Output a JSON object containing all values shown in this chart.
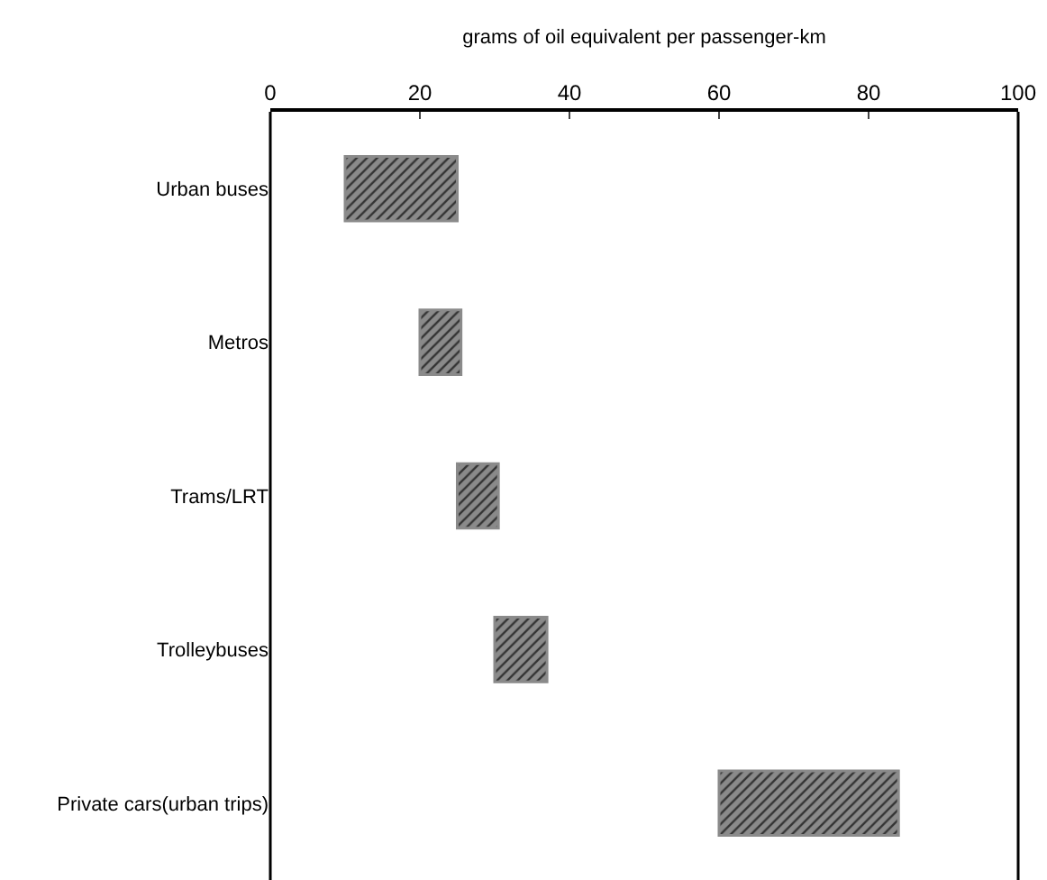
{
  "chart_data": {
    "type": "bar",
    "orientation": "horizontal",
    "xlabel": "grams of oil equivalent per passenger-km",
    "categories": [
      "Urban buses",
      "Metros",
      "Trams/LRT",
      "Trolleybuses",
      "Private cars(urban trips)"
    ],
    "base": [
      10,
      20,
      25,
      30,
      60
    ],
    "values": [
      15,
      5.5,
      5.5,
      7,
      24
    ],
    "color": "#8a8a8a",
    "xlim": [
      0,
      100
    ],
    "xticks": [
      0,
      20,
      40,
      60,
      80,
      100
    ]
  }
}
